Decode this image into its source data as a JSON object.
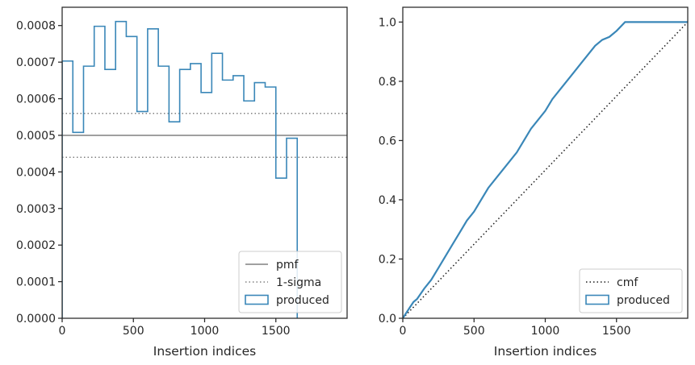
{
  "chart_data": [
    {
      "type": "histogram",
      "title": "",
      "xlabel": "Insertion indices",
      "ylabel": "",
      "xlim": [
        0,
        2000
      ],
      "ylim": [
        0,
        0.00085
      ],
      "xticks": [
        0,
        500,
        1000,
        1500
      ],
      "xtick_labels": [
        "0",
        "500",
        "1000",
        "1500"
      ],
      "yticks": [
        0,
        0.0001,
        0.0002,
        0.0003,
        0.0004,
        0.0005,
        0.0006,
        0.0007,
        0.0008
      ],
      "ytick_labels": [
        "0.0000",
        "0.0001",
        "0.0002",
        "0.0003",
        "0.0004",
        "0.0005",
        "0.0006",
        "0.0007",
        "0.0008"
      ],
      "bin_edges": [
        0,
        75,
        150,
        225,
        300,
        375,
        450,
        525,
        600,
        675,
        750,
        825,
        900,
        975,
        1050,
        1125,
        1200,
        1275,
        1350,
        1425,
        1500,
        1575,
        1650
      ],
      "series": [
        {
          "name": "produced",
          "kind": "step-hist",
          "color": "#3a87b8",
          "values": [
            0.000703,
            0.000508,
            0.000689,
            0.000798,
            0.00068,
            0.000811,
            0.00077,
            0.000565,
            0.000791,
            0.000689,
            0.000537,
            0.00068,
            0.000696,
            0.000617,
            0.000724,
            0.000651,
            0.000663,
            0.000594,
            0.000644,
            0.000632,
            0.000383,
            0.000492,
            0.0
          ]
        }
      ],
      "reference_lines": [
        {
          "name": "pmf",
          "y": 0.0005,
          "style": "solid",
          "color": "#808080"
        },
        {
          "name": "1-sigma",
          "y": 0.00056,
          "style": "dotted",
          "color": "#808080"
        },
        {
          "name": "1-sigma-lower",
          "y": 0.00044,
          "style": "dotted",
          "color": "#808080"
        }
      ],
      "legend": {
        "position": "lower-right",
        "entries": [
          {
            "label": "pmf",
            "kind": "line-solid",
            "color": "#808080"
          },
          {
            "label": "1-sigma",
            "kind": "line-dotted",
            "color": "#808080"
          },
          {
            "label": "produced",
            "kind": "patch",
            "color": "#3a87b8"
          }
        ]
      }
    },
    {
      "type": "line",
      "title": "",
      "xlabel": "Insertion indices",
      "ylabel": "",
      "xlim": [
        0,
        2000
      ],
      "ylim": [
        0,
        1.05
      ],
      "xticks": [
        0,
        500,
        1000,
        1500
      ],
      "xtick_labels": [
        "0",
        "500",
        "1000",
        "1500"
      ],
      "yticks": [
        0,
        0.2,
        0.4,
        0.6,
        0.8,
        1.0
      ],
      "ytick_labels": [
        "0.0",
        "0.2",
        "0.4",
        "0.6",
        "0.8",
        "1.0"
      ],
      "series": [
        {
          "name": "cmf",
          "style": "dotted",
          "color": "#1a1a1a",
          "x": [
            0,
            2000
          ],
          "y": [
            0,
            1.0
          ]
        },
        {
          "name": "produced",
          "style": "solid",
          "color": "#3a87b8",
          "x": [
            0,
            20,
            50,
            75,
            100,
            150,
            200,
            250,
            300,
            350,
            400,
            450,
            500,
            550,
            600,
            650,
            700,
            750,
            800,
            850,
            900,
            950,
            1000,
            1050,
            1100,
            1150,
            1200,
            1250,
            1300,
            1350,
            1400,
            1450,
            1500,
            1540,
            1560,
            1600,
            2000
          ],
          "y": [
            0,
            0.015,
            0.037,
            0.055,
            0.065,
            0.1,
            0.13,
            0.17,
            0.21,
            0.25,
            0.29,
            0.33,
            0.36,
            0.4,
            0.44,
            0.47,
            0.5,
            0.53,
            0.56,
            0.6,
            0.64,
            0.67,
            0.7,
            0.74,
            0.77,
            0.8,
            0.83,
            0.86,
            0.89,
            0.92,
            0.94,
            0.95,
            0.97,
            0.99,
            1.0,
            1.0,
            1.0
          ]
        }
      ],
      "legend": {
        "position": "lower-right",
        "entries": [
          {
            "label": "cmf",
            "kind": "line-dotted",
            "color": "#1a1a1a"
          },
          {
            "label": "produced",
            "kind": "patch",
            "color": "#3a87b8"
          }
        ]
      }
    }
  ]
}
